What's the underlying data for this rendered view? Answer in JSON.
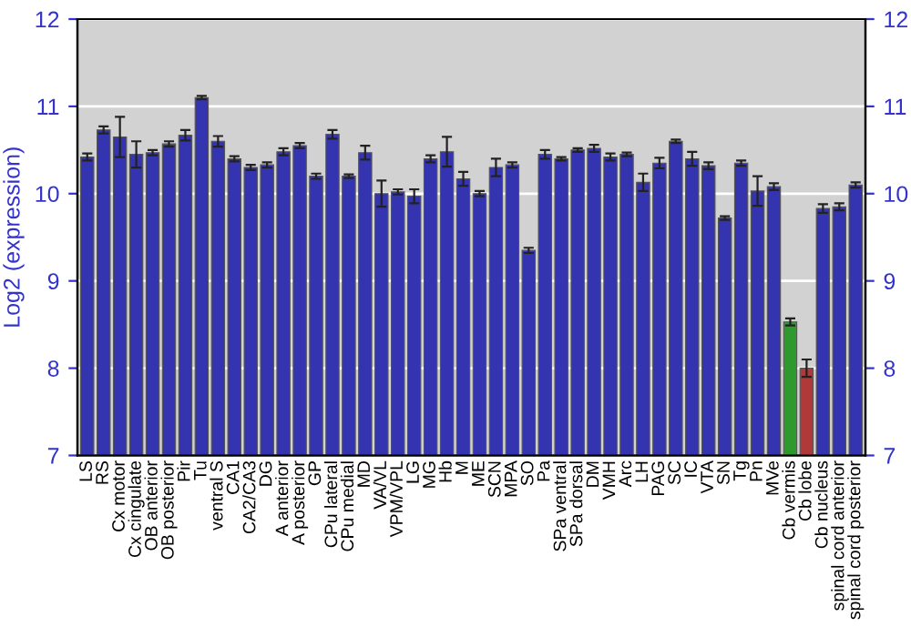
{
  "chart_data": {
    "type": "bar",
    "ylabel": "Log2 (expression)",
    "categories": [
      "LS",
      "RS",
      "Cx motor",
      "Cx cingulate",
      "OB anterior",
      "OB posterior",
      "Pir",
      "Tu",
      "ventral S",
      "CA1",
      "CA2/CA3",
      "DG",
      "A anterior",
      "A posterior",
      "GP",
      "CPu lateral",
      "CPu medial",
      "MD",
      "VA/VL",
      "VPM/VPL",
      "LG",
      "MG",
      "Hb",
      "M",
      "ME",
      "SCN",
      "MPA",
      "SO",
      "Pa",
      "SPa ventral",
      "SPa dorsal",
      "DM",
      "VMH",
      "Arc",
      "LH",
      "PAG",
      "SC",
      "IC",
      "VTA",
      "SN",
      "Tg",
      "Pn",
      "MVe",
      "Cb vermis",
      "Cb lobe",
      "Cb nucleus",
      "spinal cord anterior",
      "spinal cord posterior"
    ],
    "values": [
      10.42,
      10.73,
      10.65,
      10.45,
      10.47,
      10.57,
      10.67,
      11.1,
      10.6,
      10.4,
      10.3,
      10.33,
      10.48,
      10.55,
      10.2,
      10.68,
      10.2,
      10.47,
      10.0,
      10.02,
      9.97,
      10.4,
      10.48,
      10.17,
      10.0,
      10.3,
      10.33,
      9.35,
      10.45,
      10.4,
      10.5,
      10.52,
      10.42,
      10.45,
      10.13,
      10.35,
      10.6,
      10.4,
      10.32,
      9.72,
      10.35,
      10.03,
      10.08,
      8.53,
      8.0,
      9.83,
      9.85,
      10.1
    ],
    "errors": [
      0.04,
      0.04,
      0.23,
      0.15,
      0.03,
      0.03,
      0.06,
      0.02,
      0.06,
      0.03,
      0.03,
      0.03,
      0.04,
      0.03,
      0.03,
      0.05,
      0.02,
      0.08,
      0.15,
      0.03,
      0.08,
      0.04,
      0.17,
      0.08,
      0.03,
      0.1,
      0.03,
      0.03,
      0.05,
      0.02,
      0.02,
      0.04,
      0.04,
      0.02,
      0.1,
      0.06,
      0.02,
      0.08,
      0.04,
      0.02,
      0.03,
      0.17,
      0.04,
      0.04,
      0.1,
      0.05,
      0.04,
      0.03
    ],
    "colors": [
      "#3434b0",
      "#3434b0",
      "#3434b0",
      "#3434b0",
      "#3434b0",
      "#3434b0",
      "#3434b0",
      "#3434b0",
      "#3434b0",
      "#3434b0",
      "#3434b0",
      "#3434b0",
      "#3434b0",
      "#3434b0",
      "#3434b0",
      "#3434b0",
      "#3434b0",
      "#3434b0",
      "#3434b0",
      "#3434b0",
      "#3434b0",
      "#3434b0",
      "#3434b0",
      "#3434b0",
      "#3434b0",
      "#3434b0",
      "#3434b0",
      "#3434b0",
      "#3434b0",
      "#3434b0",
      "#3434b0",
      "#3434b0",
      "#3434b0",
      "#3434b0",
      "#3434b0",
      "#3434b0",
      "#3434b0",
      "#3434b0",
      "#3434b0",
      "#3434b0",
      "#3434b0",
      "#3434b0",
      "#3434b0",
      "#2e9a2e",
      "#b03a3a",
      "#3434b0",
      "#3434b0",
      "#3434b0"
    ],
    "ylim": [
      7,
      12
    ],
    "yticks": [
      7,
      8,
      9,
      10,
      11,
      12
    ],
    "y2lim": [
      7,
      12
    ],
    "y2ticks": [
      7,
      8,
      9,
      10,
      11,
      12
    ],
    "grid": "y"
  }
}
